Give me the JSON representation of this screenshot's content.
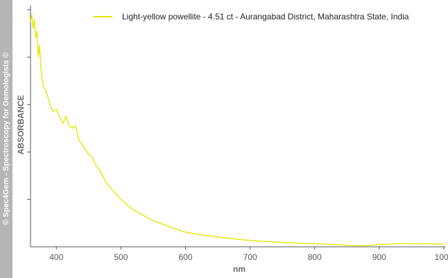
{
  "watermark": "© Spec4Gem - Spectroscopy for Gemologists ©",
  "chart_data": {
    "type": "line",
    "title": "",
    "xlabel": "nm",
    "ylabel": "ABSORBANCE",
    "xlim": [
      360,
      1000
    ],
    "ylim": [
      0,
      1
    ],
    "x_ticks": [
      400,
      500,
      600,
      700,
      800,
      900,
      1000
    ],
    "x_tick_labels": [
      "400",
      "500",
      "600",
      "700",
      "800",
      "900",
      "1000"
    ],
    "y_tick_values": [
      0.2,
      0.4,
      0.6,
      0.8,
      1.0
    ],
    "y_tick_labels_shown": false,
    "grid": false,
    "legend_position": "top-right",
    "line_color": "#e6e600",
    "series": [
      {
        "name": "Light-yellow powellite - 4.51 ct - Aurangabad District, Maharashtra State, India",
        "x": [
          360,
          362,
          364,
          366,
          368,
          370,
          372,
          374,
          376,
          378,
          380,
          383,
          386,
          390,
          395,
          400,
          405,
          410,
          415,
          420,
          425,
          430,
          435,
          440,
          445,
          450,
          455,
          460,
          465,
          470,
          475,
          480,
          490,
          500,
          510,
          520,
          530,
          540,
          550,
          560,
          570,
          580,
          590,
          600,
          620,
          640,
          660,
          680,
          700,
          720,
          740,
          760,
          780,
          800,
          820,
          840,
          860,
          880,
          900,
          920,
          940,
          960,
          980,
          1000
        ],
        "y": [
          0.95,
          0.98,
          0.92,
          0.96,
          0.88,
          0.91,
          0.8,
          0.85,
          0.76,
          0.7,
          0.68,
          0.66,
          0.64,
          0.6,
          0.57,
          0.58,
          0.55,
          0.52,
          0.55,
          0.51,
          0.5,
          0.51,
          0.45,
          0.43,
          0.41,
          0.39,
          0.38,
          0.35,
          0.33,
          0.31,
          0.28,
          0.26,
          0.23,
          0.2,
          0.175,
          0.155,
          0.14,
          0.125,
          0.11,
          0.1,
          0.09,
          0.08,
          0.07,
          0.062,
          0.052,
          0.045,
          0.038,
          0.032,
          0.027,
          0.023,
          0.02,
          0.017,
          0.015,
          0.013,
          0.011,
          0.008,
          0.005,
          0.005,
          0.01,
          0.012,
          0.014,
          0.012,
          0.013,
          0.01
        ]
      }
    ]
  }
}
